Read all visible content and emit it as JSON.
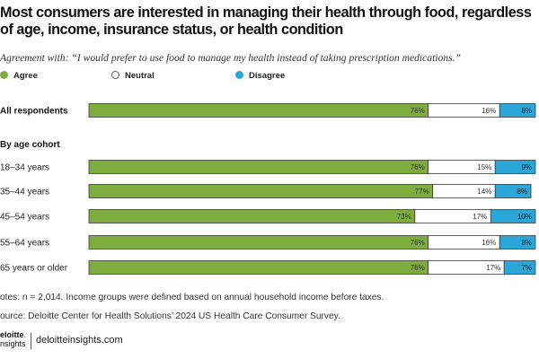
{
  "chart_data": {
    "type": "bar",
    "orientation": "horizontal",
    "stacked": true,
    "title": "Most consumers are interested in managing their health through food, regardless of age, income, insurance status, or health condition",
    "subtitle": "Agreement with: “I would prefer to use food to manage my health instead of taking prescription medications.”",
    "xlim": [
      0,
      100
    ],
    "legend_position": "top-left",
    "series": [
      {
        "name": "Agree",
        "color": "#7fac3e",
        "values": [
          76,
          76,
          77,
          73,
          76,
          76
        ],
        "labels": [
          "76%",
          "76%",
          "77%",
          "73%",
          "76%",
          "76%"
        ]
      },
      {
        "name": "Neutral",
        "color": "#ffffff",
        "values": [
          16,
          15,
          14,
          17,
          16,
          17
        ],
        "labels": [
          "16%",
          "15%",
          "14%",
          "17%",
          "16%",
          "17%"
        ]
      },
      {
        "name": "Disagree",
        "color": "#2ba6d9",
        "values": [
          8,
          9,
          8,
          10,
          8,
          7
        ],
        "labels": [
          "8%",
          "9%",
          "8%",
          "10%",
          "8%",
          "7%"
        ]
      }
    ],
    "groups": [
      {
        "label": "",
        "rows": [
          0
        ]
      },
      {
        "label": "By age cohort",
        "rows": [
          1,
          2,
          3,
          4,
          5
        ]
      }
    ],
    "categories": [
      "All respondents",
      "18–34 years",
      "35–44 years",
      "45–54 years",
      "55–64 years",
      "65 years or older"
    ]
  },
  "notes": "otes: n = 2,014. Income groups were defined based on annual household income before taxes.",
  "source": "ource: Deloitte Center for Health Solutions’ 2024 US Health Care Consumer Survey.",
  "brand": {
    "logo_line1": "eloitte",
    "logo_line2": "nsights",
    "site": "deloitteinsights.com"
  }
}
